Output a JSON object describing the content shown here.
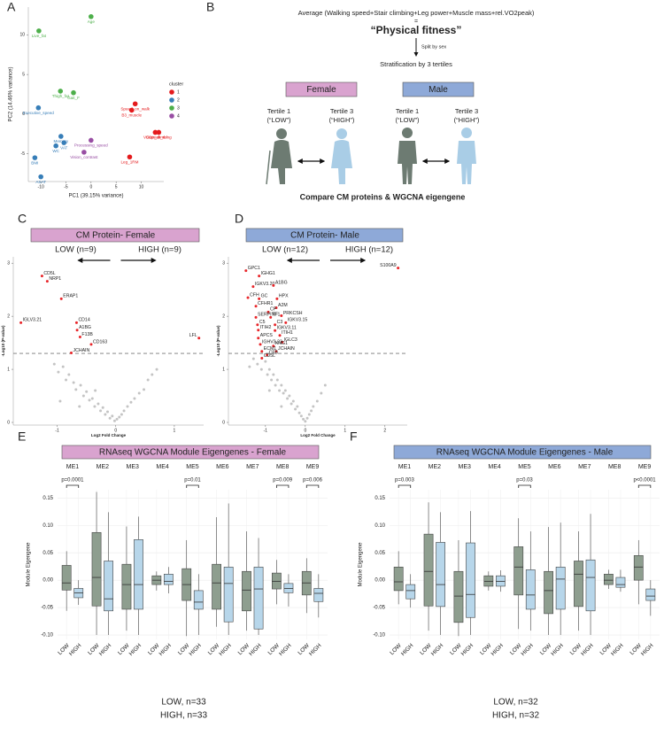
{
  "chart_data": [
    {
      "type": "scatter",
      "panel": "A",
      "x_label": "PC1 (39.15% variance)",
      "y_label": "PC2 (14.46% variance)",
      "xlim": [
        -12.5,
        14.5
      ],
      "ylim": [
        -8.5,
        13.5
      ],
      "xticks": [
        -10,
        -5,
        0,
        5,
        10
      ],
      "yticks": [
        -5,
        0,
        5,
        10
      ],
      "legend_title": "cluster",
      "series": [
        {
          "name": "1",
          "color": "#e41a1c",
          "x": [
            8.8,
            8.1,
            12.8,
            13.5,
            7.7
          ],
          "values": [
            1.3,
            0.5,
            -2.3,
            -2.3,
            -5.4
          ],
          "labels": [
            "Speed_on_walk",
            "B3_muscle",
            "VO2peak_rel",
            "Stair_climbing",
            "Leg_1RM"
          ]
        },
        {
          "name": "2",
          "color": "#377eb8",
          "x": [
            -10.5,
            -6.0,
            -5.4,
            -7.0,
            -11.2,
            -10.0
          ],
          "values": [
            0.8,
            -2.8,
            -3.6,
            -4.0,
            -5.5,
            -7.9
          ],
          "labels": [
            "Executive_speed",
            "Memory",
            "VAT",
            "WC",
            "BMI",
            "ASAT"
          ]
        },
        {
          "name": "3",
          "color": "#4daf4a",
          "x": [
            0,
            -10.4,
            -6.1,
            -3.5
          ],
          "values": [
            12.3,
            10.5,
            2.9,
            2.7
          ],
          "labels": [
            "Age",
            "Live_fat",
            "Thigh_fat",
            "Gait_F"
          ]
        },
        {
          "name": "4",
          "color": "#984ea3",
          "x": [
            0,
            -1.4
          ],
          "values": [
            -3.3,
            -4.8
          ],
          "labels": [
            "Processing_speed",
            "Vision_contrast"
          ]
        }
      ]
    },
    {
      "type": "scatter",
      "panel": "C",
      "title": "CM Protein- Female",
      "title_fill": "#d9a3cf",
      "groups": [
        "LOW (n=9)",
        "HIGH (n=9)"
      ],
      "x_label": "Log2 Fold Change",
      "y_label": "-Log10 (P-value)",
      "xlim": [
        -1.75,
        1.5
      ],
      "ylim": [
        -0.05,
        3.12
      ],
      "xticks": [
        -1,
        0,
        1
      ],
      "yticks": [
        0,
        1,
        2,
        3
      ],
      "threshold": 1.3,
      "series": [
        {
          "color": "#e8262a",
          "x": [
            -1.26,
            -1.17,
            -0.93,
            -1.62,
            -0.67,
            -0.66,
            -0.61,
            -0.42,
            1.42,
            -0.76
          ],
          "values": [
            2.76,
            2.66,
            2.33,
            1.88,
            1.88,
            1.74,
            1.61,
            1.47,
            1.59,
            1.31
          ],
          "labels": [
            "CD5L",
            "NRP1",
            "ERAP1",
            "IGLV3.21",
            "CD14",
            "A1BG",
            "F13B",
            "CD163",
            "LFL",
            "JCHAIN"
          ]
        },
        {
          "color": "#c4c4c4",
          "x": [
            -1.05,
            -0.98,
            -0.9,
            -0.85,
            -0.8,
            -0.72,
            -0.68,
            -0.6,
            -0.55,
            -0.5,
            -0.45,
            -0.4,
            -0.36,
            -0.3,
            -0.26,
            -0.22,
            -0.18,
            -0.14,
            -0.1,
            -0.06,
            -0.02,
            0.02,
            0.06,
            0.1,
            0.14,
            0.2,
            0.26,
            0.32,
            0.4,
            0.48,
            0.55,
            0.62,
            0.7,
            -0.95,
            -0.62,
            -0.35
          ],
          "values": [
            1.1,
            0.95,
            1.05,
            0.8,
            0.9,
            0.75,
            0.62,
            0.7,
            0.5,
            0.58,
            0.42,
            0.45,
            0.3,
            0.35,
            0.22,
            0.28,
            0.15,
            0.2,
            0.08,
            0.12,
            0.03,
            0.06,
            0.1,
            0.15,
            0.22,
            0.3,
            0.38,
            0.45,
            0.55,
            0.62,
            0.8,
            0.9,
            1.0,
            0.4,
            0.3,
            0.6
          ]
        }
      ]
    },
    {
      "type": "scatter",
      "panel": "D",
      "title": "CM Protein- Male",
      "title_fill": "#8ea9d8",
      "groups": [
        "LOW (n=12)",
        "HIGH (n=12)"
      ],
      "x_label": "Log2 Fold Change",
      "y_label": "-Log10 (P-value)",
      "xlim": [
        -1.93,
        2.56
      ],
      "ylim": [
        -0.05,
        3.12
      ],
      "xticks": [
        -1,
        0,
        1,
        2
      ],
      "yticks": [
        0,
        1,
        2,
        3
      ],
      "threshold": 1.3,
      "series": [
        {
          "color": "#e8262a",
          "x": [
            2.33,
            -1.49,
            -1.16,
            -1.31,
            -0.8,
            -1.44,
            -1.16,
            -0.71,
            -1.24,
            -0.73,
            -0.93,
            -1.24,
            -0.87,
            -0.6,
            -1.2,
            -0.76,
            -0.49,
            -1.18,
            -0.76,
            -1.18,
            -0.64,
            -0.58,
            -1.13,
            -0.8,
            -1.09,
            -0.73,
            -0.96,
            -1.09
          ],
          "values": [
            2.91,
            2.86,
            2.76,
            2.56,
            2.58,
            2.35,
            2.33,
            2.33,
            2.19,
            2.16,
            2.08,
            1.98,
            1.98,
            2.01,
            1.84,
            1.84,
            1.88,
            1.74,
            1.73,
            1.59,
            1.64,
            1.51,
            1.47,
            1.44,
            1.34,
            1.34,
            1.27,
            1.21
          ],
          "labels": [
            "S100A9",
            "GPC1",
            "IGHG1",
            "IGKV3.20",
            "A1BG",
            "CFH",
            "GC",
            "HPX",
            "CFHR1",
            "A2M",
            "CP",
            "SERPINF1",
            "TF",
            "PRKCSH",
            "C5",
            "C3",
            "IGKV3.15",
            "ITIH2",
            "IGKV3.11",
            "APCS",
            "ITIH1",
            "IGLC3",
            "IGHV3.23",
            "KNG1",
            "ECM1",
            "JCHAIN",
            "CFB",
            "CD5L"
          ]
        },
        {
          "color": "#c4c4c4",
          "x": [
            -1.3,
            -1.2,
            -1.1,
            -1.0,
            -0.95,
            -0.9,
            -0.85,
            -0.8,
            -0.75,
            -0.7,
            -0.65,
            -0.6,
            -0.55,
            -0.5,
            -0.45,
            -0.4,
            -0.35,
            -0.3,
            -0.25,
            -0.2,
            -0.15,
            -0.1,
            -0.05,
            0,
            0.05,
            0.1,
            0.15,
            0.2,
            0.3,
            0.4,
            0.5,
            -1.4,
            -0.9,
            -0.6
          ],
          "values": [
            1.2,
            1.1,
            1.0,
            1.15,
            0.9,
            1.0,
            0.8,
            0.9,
            0.7,
            0.8,
            0.6,
            0.7,
            0.55,
            0.6,
            0.45,
            0.5,
            0.35,
            0.4,
            0.25,
            0.3,
            0.18,
            0.12,
            0.06,
            0.02,
            0.08,
            0.15,
            0.22,
            0.3,
            0.4,
            0.55,
            0.7,
            1.05,
            0.6,
            0.3
          ]
        }
      ]
    },
    {
      "type": "box",
      "panel": "E",
      "title": "RNAseq WGCNA Module Eigengenes - Female",
      "title_fill": "#d9a3cf",
      "categories": [
        "ME1",
        "ME2",
        "ME3",
        "ME4",
        "ME5",
        "ME6",
        "ME7",
        "ME8",
        "ME9"
      ],
      "y_label": "Module Eigengene",
      "ylim": [
        -0.108,
        0.165
      ],
      "yticks": [
        0.15,
        {
          "value": 0.1,
          "label": "0.10"
        },
        0.05,
        {
          "value": 0,
          "label": "0.00"
        },
        -0.05,
        {
          "value": -0.1,
          "label": "-0.10"
        }
      ],
      "pvalue_labels": [
        "p=0.0001",
        null,
        null,
        null,
        "p=0.01",
        null,
        null,
        "p=0.009",
        "p=0.006"
      ],
      "footnote": [
        "LOW, n=33",
        "HIGH, n=33"
      ],
      "series": [
        {
          "name": "LOW",
          "color": "#8e9e8f",
          "max": [
            0.053,
            0.161,
            0.098,
            0.016,
            0.073,
            0.115,
            0.089,
            0.037,
            0.04
          ],
          "q3": [
            0.027,
            0.087,
            0.029,
            0.008,
            0.021,
            0.029,
            0.016,
            0.013,
            0.016
          ],
          "median": [
            -0.005,
            0.005,
            -0.008,
            0,
            -0.008,
            -0.005,
            -0.018,
            -0.002,
            -0.005
          ],
          "q1": [
            -0.018,
            -0.047,
            -0.053,
            -0.008,
            -0.037,
            -0.053,
            -0.056,
            -0.016,
            -0.027
          ],
          "min": [
            -0.056,
            -0.1,
            -0.092,
            -0.019,
            -0.102,
            -0.085,
            -0.092,
            -0.044,
            -0.06
          ]
        },
        {
          "name": "HIGH",
          "color": "#b7d6ea",
          "max": [
            0,
            0.124,
            0.116,
            0.024,
            0.011,
            0.14,
            0.077,
            0.011,
            0.011
          ],
          "q3": [
            -0.015,
            0.035,
            0.074,
            0.011,
            -0.019,
            0.024,
            0.024,
            -0.006,
            -0.015
          ],
          "median": [
            -0.023,
            -0.034,
            -0.008,
            -0.002,
            -0.04,
            -0.006,
            -0.016,
            -0.015,
            -0.024
          ],
          "q1": [
            -0.032,
            -0.056,
            -0.053,
            -0.008,
            -0.053,
            -0.076,
            -0.089,
            -0.023,
            -0.039
          ],
          "min": [
            -0.045,
            -0.1,
            -0.1,
            -0.024,
            -0.1,
            -0.1,
            -0.1,
            -0.048,
            -0.068
          ]
        }
      ]
    },
    {
      "type": "box",
      "panel": "F",
      "title": "RNAseq WGCNA Module Eigengenes - Male",
      "title_fill": "#8ea9d8",
      "categories": [
        "ME1",
        "ME2",
        "ME3",
        "ME4",
        "ME5",
        "ME6",
        "ME7",
        "ME8",
        "ME9"
      ],
      "y_label": "Module Eigengene",
      "ylim": [
        -0.108,
        0.165
      ],
      "yticks": [
        0.15,
        {
          "value": 0.1,
          "label": "0.10"
        },
        0.05,
        {
          "value": 0,
          "label": "0.00"
        },
        -0.05,
        {
          "value": -0.1,
          "label": "-0.10"
        }
      ],
      "pvalue_labels": [
        "p=0.003",
        null,
        null,
        null,
        "p=0.03",
        null,
        null,
        null,
        "p<0.0001"
      ],
      "footnote": [
        "LOW, n=32",
        "HIGH, n=32"
      ],
      "series": [
        {
          "name": "LOW",
          "color": "#8e9e8f",
          "max": [
            0.053,
            0.142,
            0.073,
            0.016,
            0.113,
            0.097,
            0.089,
            0.019,
            0.073
          ],
          "q3": [
            0.024,
            0.084,
            0.016,
            0.008,
            0.061,
            0.016,
            0.035,
            0.011,
            0.045
          ],
          "median": [
            -0.003,
            0.016,
            -0.029,
            -0.002,
            0.024,
            -0.019,
            0.011,
            0,
            0.024
          ],
          "q1": [
            -0.019,
            -0.047,
            -0.077,
            -0.011,
            -0.027,
            -0.061,
            -0.048,
            -0.008,
            0
          ],
          "min": [
            -0.044,
            -0.092,
            -0.102,
            -0.019,
            -0.089,
            -0.1,
            -0.092,
            -0.016,
            -0.044
          ]
        },
        {
          "name": "HIGH",
          "color": "#b7d6ea",
          "max": [
            0.011,
            0.124,
            0.126,
            0.018,
            0.089,
            0.105,
            0.121,
            0.019,
            0
          ],
          "q3": [
            -0.008,
            0.069,
            0.068,
            0.008,
            0.019,
            0.024,
            0.037,
            0.005,
            -0.016
          ],
          "median": [
            -0.019,
            -0.008,
            -0.026,
            -0.002,
            -0.027,
            0.002,
            0.005,
            -0.008,
            -0.029
          ],
          "q1": [
            -0.034,
            -0.048,
            -0.068,
            -0.011,
            -0.053,
            -0.053,
            -0.056,
            -0.013,
            -0.037
          ],
          "min": [
            -0.05,
            -0.1,
            -0.1,
            -0.021,
            -0.092,
            -0.1,
            -0.1,
            -0.021,
            -0.065
          ]
        }
      ]
    }
  ],
  "diagram": {
    "panel": "B",
    "formula": "Average (Walking speed+Stair climbing+Leg power+Muscle mass+rel.VO2peak)",
    "equals": "=",
    "concept": "“Physical fitness”",
    "split": "Split by sex",
    "stratification": "Stratification by 3 tertiles",
    "groups": [
      {
        "sex": "Female",
        "tertiles": [
          {
            "name": "Tertile 1",
            "label": "(“LOW”)"
          },
          {
            "name": "Tertile 3",
            "label": "(“HIGH”)"
          }
        ]
      },
      {
        "sex": "Male",
        "tertiles": [
          {
            "name": "Tertile 1",
            "label": "(“LOW”)"
          },
          {
            "name": "Tertile 3",
            "label": "(“HIGH”)"
          }
        ]
      }
    ],
    "comparison": "Compare CM proteins & WGCNA eigengene"
  }
}
